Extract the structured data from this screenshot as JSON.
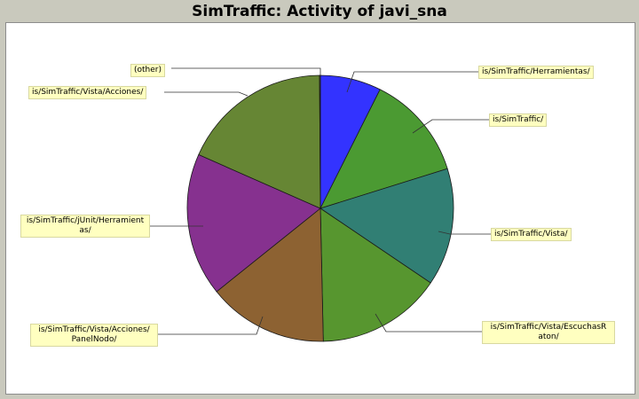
{
  "chart_data": {
    "type": "pie",
    "title": "SimTraffic: Activity of javi_sna",
    "start_angle_deg": 0,
    "direction": "clockwise",
    "slices": [
      {
        "label": "is/SimTraffic/Herramientas/",
        "value": 7.4,
        "color": "#3333ff"
      },
      {
        "label": "is/SimTraffic/",
        "value": 12.8,
        "color": "#4b9a32"
      },
      {
        "label": "is/SimTraffic/Vista/",
        "value": 14.3,
        "color": "#317f74"
      },
      {
        "label": "is/SimTraffic/Vista/EscuchasRaton/",
        "value": 15.2,
        "color": "#57962f"
      },
      {
        "label": "is/SimTraffic/Vista/Acciones/PanelNodo/",
        "value": 14.6,
        "color": "#8d6232"
      },
      {
        "label": "is/SimTraffic/jUnit/Herramientas/",
        "value": 17.4,
        "color": "#86318f"
      },
      {
        "label": "is/SimTraffic/Vista/Acciones/",
        "value": 18.3,
        "color": "#668634"
      },
      {
        "label": "(other)",
        "value": 0.1,
        "color": "#999999"
      }
    ],
    "callouts": [
      {
        "text": "is/SimTraffic/Herramientas/",
        "display": "is/SimTraffic/Herramientas/"
      },
      {
        "text": "is/SimTraffic/",
        "display": "is/SimTraffic/"
      },
      {
        "text": "is/SimTraffic/Vista/",
        "display": "is/SimTraffic/Vista/"
      },
      {
        "text": "is/SimTraffic/Vista/EscuchasRaton/",
        "display": "is/SimTraffic/Vista/EscuchasR\naton/"
      },
      {
        "text": "is/SimTraffic/Vista/Acciones/PanelNodo/",
        "display": "is/SimTraffic/Vista/Acciones/\nPanelNodo/"
      },
      {
        "text": "is/SimTraffic/jUnit/Herramientas/",
        "display": "is/SimTraffic/jUnit/Herramient\nas/"
      },
      {
        "text": "is/SimTraffic/Vista/Acciones/",
        "display": "is/SimTraffic/Vista/Acciones/"
      },
      {
        "text": "(other)",
        "display": "(other)"
      }
    ]
  }
}
